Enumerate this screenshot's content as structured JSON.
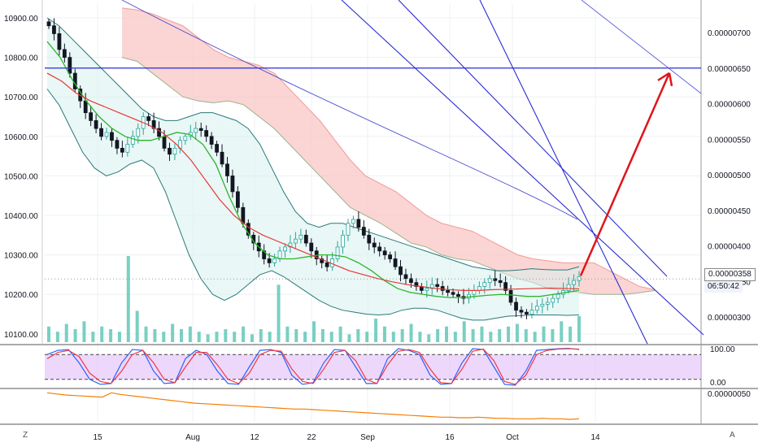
{
  "chart": {
    "price_tag": "0.00000358",
    "time_tag": "06:50:42",
    "corner_left": "Z",
    "corner_right": "A",
    "colors": {
      "bull": "#26a69a",
      "bear": "#131722",
      "bb": "#2a7a78",
      "bb_fill": "#d7f0ee",
      "ma_green": "#2db52d",
      "ma_red": "#e53935",
      "cloud_bear": "#f8c7c5",
      "trend_blue": "#2b2bd6",
      "arrow": "#e0141b",
      "rsi_band": "#e1bcf7",
      "osc_blue": "#2962ff",
      "osc_red": "#f23645",
      "lower_line": "#f57c00",
      "volume": "#58c4b4"
    }
  },
  "chart_data": [
    {
      "type": "candlestick",
      "panel": "price",
      "x_labels": [
        "15",
        "Aug",
        "12",
        "22",
        "Sep",
        "16",
        "Oct",
        "14"
      ],
      "left_axis": {
        "ticks": [
          10100,
          10200,
          10300,
          10400,
          10500,
          10600,
          10700,
          10800,
          10900
        ],
        "tick_labels": [
          "10100.00",
          "10200.00",
          "10300.00",
          "10400.00",
          "10500.00",
          "10600.00",
          "10700.00",
          "10800.00",
          "10900.00"
        ],
        "range": [
          10075,
          10935
        ]
      },
      "right_axis": {
        "tick_labels": [
          "0.00000300",
          "0.00000350",
          "0.00000400",
          "0.00000450",
          "0.00000500",
          "0.00000550",
          "0.00000600",
          "0.00000650",
          "0.00000700"
        ]
      },
      "candle_closes": [
        10880,
        10860,
        10820,
        10800,
        10760,
        10720,
        10690,
        10660,
        10640,
        10620,
        10600,
        10610,
        10590,
        10570,
        10560,
        10580,
        10600,
        10620,
        10650,
        10640,
        10620,
        10600,
        10570,
        10555,
        10570,
        10590,
        10600,
        10610,
        10620,
        10615,
        10600,
        10580,
        10560,
        10530,
        10500,
        10460,
        10420,
        10380,
        10350,
        10330,
        10310,
        10290,
        10280,
        10290,
        10310,
        10320,
        10330,
        10340,
        10350,
        10330,
        10310,
        10290,
        10280,
        10270,
        10290,
        10320,
        10350,
        10380,
        10390,
        10370,
        10350,
        10330,
        10320,
        10310,
        10300,
        10290,
        10270,
        10250,
        10240,
        10230,
        10220,
        10210,
        10215,
        10225,
        10220,
        10210,
        10205,
        10200,
        10195,
        10190,
        10200,
        10210,
        10220,
        10230,
        10240,
        10235,
        10230,
        10210,
        10180,
        10160,
        10155,
        10150,
        10160,
        10170,
        10175,
        10180,
        10190,
        10200,
        10210,
        10225,
        10235,
        10245
      ],
      "bollinger_upper": [
        10900,
        10880,
        10850,
        10820,
        10790,
        10760,
        10730,
        10700,
        10670,
        10650,
        10640,
        10640,
        10650,
        10660,
        10660,
        10650,
        10640,
        10620,
        10580,
        10520,
        10460,
        10410,
        10380,
        10370,
        10380,
        10380,
        10370,
        10360,
        10350,
        10340,
        10330,
        10320,
        10310,
        10300,
        10290,
        10280,
        10270,
        10265,
        10260,
        10260,
        10262,
        10265,
        10263,
        10262,
        10262,
        10270
      ],
      "bollinger_lower": [
        10720,
        10680,
        10620,
        10560,
        10520,
        10500,
        10510,
        10530,
        10540,
        10520,
        10460,
        10380,
        10300,
        10240,
        10200,
        10185,
        10200,
        10225,
        10250,
        10260,
        10245,
        10225,
        10205,
        10185,
        10170,
        10160,
        10155,
        10150,
        10148,
        10150,
        10160,
        10165,
        10165,
        10160,
        10150,
        10140,
        10135,
        10135,
        10140,
        10145,
        10146,
        10148,
        10148,
        10148,
        10147,
        10148
      ],
      "ma_green": [
        10840,
        10800,
        10740,
        10690,
        10650,
        10620,
        10600,
        10590,
        10590,
        10600,
        10610,
        10605,
        10580,
        10530,
        10450,
        10380,
        10330,
        10300,
        10290,
        10290,
        10295,
        10300,
        10300,
        10295,
        10280,
        10260,
        10235,
        10215,
        10205,
        10200,
        10195,
        10192,
        10192,
        10195,
        10198,
        10200,
        10198,
        10195,
        10195,
        10200,
        10205,
        10210
      ],
      "ma_red": [
        10760,
        10740,
        10710,
        10690,
        10675,
        10660,
        10645,
        10630,
        10610,
        10580,
        10540,
        10490,
        10440,
        10400,
        10370,
        10350,
        10335,
        10320,
        10305,
        10290,
        10275,
        10260,
        10250,
        10240,
        10232,
        10225,
        10220,
        10215,
        10212,
        10210,
        10210,
        10212,
        10213,
        10214,
        10215,
        10216,
        10215,
        10214
      ],
      "cloud_top": [
        10925,
        10920,
        10910,
        10895,
        10880,
        10850,
        10820,
        10800,
        10790,
        10780,
        10760,
        10720,
        10680,
        10640,
        10590,
        10540,
        10500,
        10480,
        10460,
        10430,
        10400,
        10380,
        10370,
        10360,
        10340,
        10320,
        10300,
        10290,
        10285,
        10280,
        10280,
        10280,
        10260,
        10240,
        10220,
        10212
      ],
      "cloud_bottom": [
        10800,
        10790,
        10760,
        10730,
        10700,
        10690,
        10685,
        10690,
        10680,
        10650,
        10620,
        10580,
        10540,
        10500,
        10460,
        10420,
        10400,
        10380,
        10355,
        10330,
        10320,
        10300,
        10290,
        10285,
        10270,
        10255,
        10240,
        10230,
        10215,
        10210,
        10205,
        10200,
        10200,
        10200,
        10204,
        10210
      ],
      "horizontal_level_right_axis": 6.5e-06,
      "target_arrow": {
        "from_right_axis": 3.58e-06,
        "to_right_axis": 6.43e-06
      },
      "volume_bars": [
        6,
        4,
        7,
        5,
        8,
        4,
        6,
        5,
        4,
        33,
        12,
        6,
        5,
        4,
        7,
        5,
        6,
        4,
        3,
        4,
        5,
        4,
        6,
        3,
        5,
        4,
        22,
        6,
        5,
        4,
        8,
        5,
        4,
        6,
        3,
        5,
        4,
        9,
        6,
        4,
        5,
        7,
        4,
        3,
        5,
        6,
        4,
        8,
        5,
        6,
        4,
        5,
        6,
        7,
        5,
        4,
        6,
        5,
        8,
        6,
        10
      ]
    },
    {
      "type": "line",
      "panel": "stochastic_rsi",
      "y_tick_labels": [
        "100.00",
        "0.00"
      ],
      "band": [
        20,
        80
      ],
      "k": [
        80,
        90,
        92,
        60,
        20,
        8,
        10,
        60,
        92,
        90,
        40,
        10,
        12,
        70,
        90,
        80,
        40,
        10,
        8,
        50,
        90,
        92,
        85,
        30,
        8,
        12,
        60,
        92,
        90,
        50,
        10,
        10,
        70,
        94,
        90,
        80,
        30,
        8,
        10,
        60,
        94,
        92,
        50,
        8,
        6,
        40,
        90,
        92,
        94,
        95,
        92
      ],
      "d": [
        70,
        85,
        90,
        75,
        35,
        15,
        10,
        40,
        80,
        90,
        60,
        20,
        12,
        50,
        85,
        85,
        55,
        20,
        10,
        35,
        80,
        90,
        88,
        45,
        15,
        10,
        45,
        85,
        90,
        65,
        20,
        10,
        55,
        88,
        92,
        85,
        45,
        12,
        10,
        45,
        88,
        93,
        65,
        15,
        8,
        30,
        80,
        90,
        93,
        94,
        93
      ]
    },
    {
      "type": "line",
      "panel": "lower",
      "y_tick_labels": [
        "0.00000050"
      ],
      "values": [
        100,
        98,
        96,
        95,
        94,
        93,
        92,
        100,
        97,
        95,
        93,
        91,
        89,
        87,
        85,
        83,
        81,
        80,
        79,
        78,
        77,
        76,
        75,
        74,
        73,
        72,
        71,
        70,
        70,
        69,
        68,
        67,
        66,
        65,
        64,
        63,
        62,
        61,
        60,
        59,
        58,
        57,
        56,
        55,
        55,
        54,
        54,
        55,
        54,
        53,
        53,
        52,
        52,
        52,
        53,
        52,
        52,
        51,
        52
      ],
      "range": [
        45,
        105
      ]
    }
  ]
}
